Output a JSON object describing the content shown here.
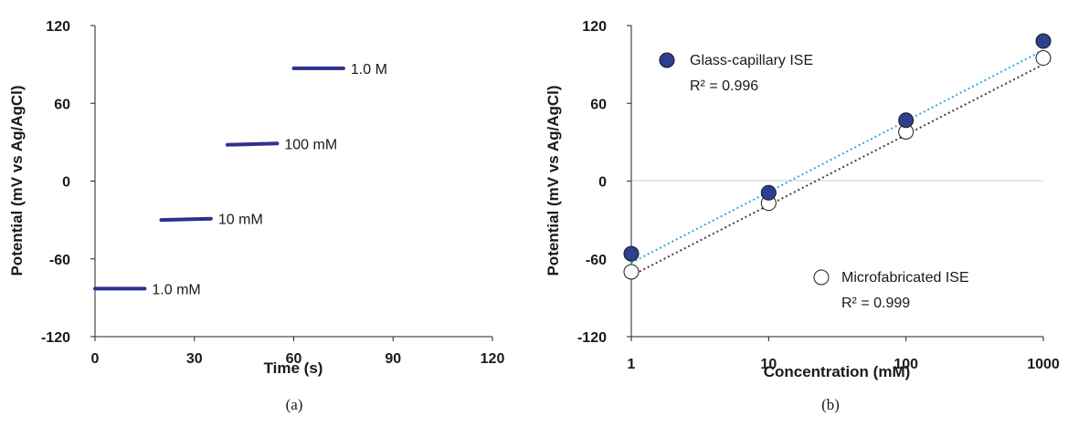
{
  "chart_data": [
    {
      "type": "line",
      "caption": "(a)",
      "xlabel": "Time (s)",
      "ylabel": "Potential (mV vs Ag/AgCl)",
      "xlim": [
        0,
        120
      ],
      "ylim": [
        -120,
        120
      ],
      "xticks": [
        "0",
        "30",
        "60",
        "90",
        "120"
      ],
      "yticks": [
        "-120",
        "-60",
        "0",
        "60",
        "120"
      ],
      "color": "#2e3192",
      "series": [
        {
          "name": "1.0 mM",
          "x": [
            0,
            15
          ],
          "y": [
            -83,
            -83
          ]
        },
        {
          "name": "10 mM",
          "x": [
            20,
            35
          ],
          "y": [
            -30,
            -29
          ]
        },
        {
          "name": "100 mM",
          "x": [
            40,
            55
          ],
          "y": [
            28,
            29
          ]
        },
        {
          "name": "1.0 M",
          "x": [
            60,
            75
          ],
          "y": [
            87,
            87
          ]
        }
      ]
    },
    {
      "type": "scatter",
      "caption": "(b)",
      "xlabel": "Concentration (mM)",
      "ylabel": "Potential (mV vs Ag/AgCl)",
      "xscale": "log",
      "xlim": [
        1,
        1000
      ],
      "ylim": [
        -120,
        120
      ],
      "xticks": [
        "1",
        "10",
        "100",
        "1000"
      ],
      "yticks": [
        "-120",
        "-60",
        "0",
        "60",
        "120"
      ],
      "series": [
        {
          "name": "Glass-capillary ISE",
          "r2": "R² = 0.996",
          "x": [
            1,
            10,
            100,
            1000
          ],
          "y": [
            -56,
            -9,
            47,
            108
          ],
          "fill": "#2e3f8f",
          "trend_color": "#29abe2",
          "trend": [
            -63,
            101
          ]
        },
        {
          "name": "Microfabricated ISE",
          "r2": "R² = 0.999",
          "x": [
            1,
            10,
            100,
            1000
          ],
          "y": [
            -70,
            -17,
            38,
            95
          ],
          "fill": "#ffffff",
          "trend_color": "#404040",
          "trend": [
            -73,
            90
          ]
        }
      ]
    }
  ]
}
